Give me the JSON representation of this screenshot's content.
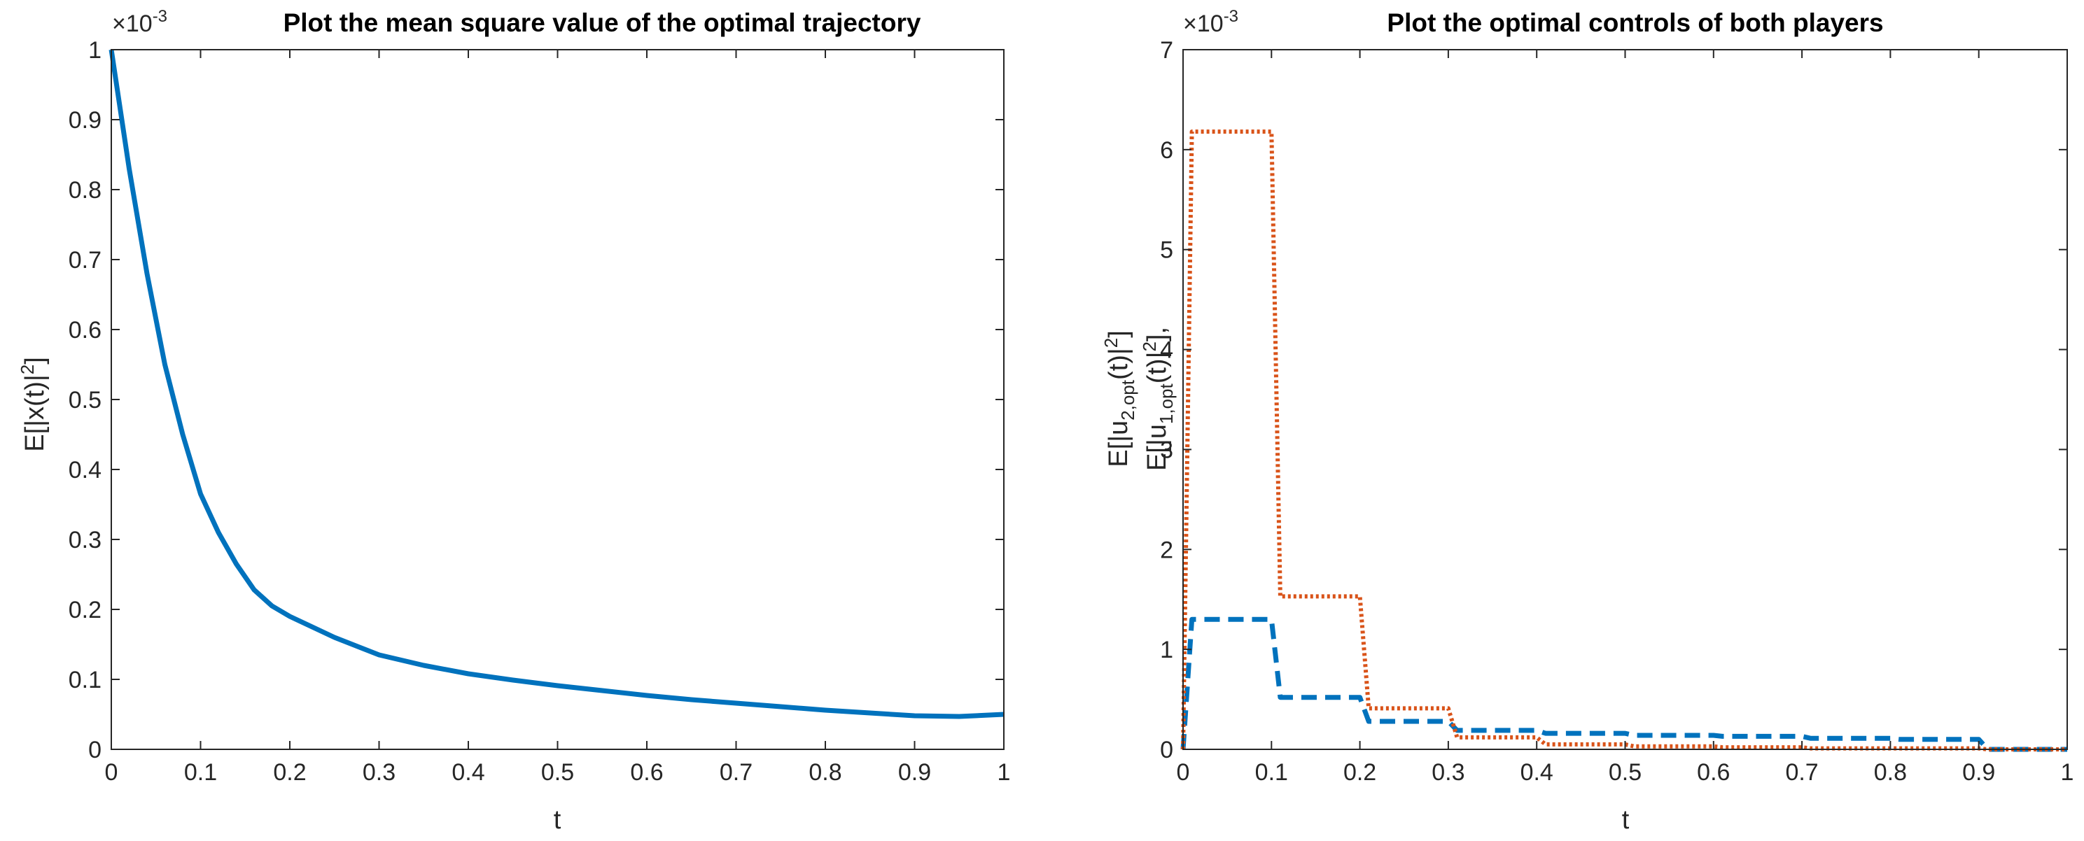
{
  "chart_data": [
    {
      "type": "line",
      "title": "Plot the mean square value of the optimal trajectory",
      "xlabel": "t",
      "ylabel": "E[|x(t)|",
      "ylabel_sup": "2",
      "ylabel_end": "]",
      "exponent_prefix": "×10",
      "exponent_sup": "-3",
      "xlim": [
        0,
        1
      ],
      "ylim": [
        0,
        1
      ],
      "xticks": [
        "0",
        "0.1",
        "0.2",
        "0.3",
        "0.4",
        "0.5",
        "0.6",
        "0.7",
        "0.8",
        "0.9",
        "1"
      ],
      "yticks": [
        "0",
        "0.1",
        "0.2",
        "0.3",
        "0.4",
        "0.5",
        "0.6",
        "0.7",
        "0.8",
        "0.9",
        "1"
      ],
      "grid": false,
      "series": [
        {
          "name": "E[|x(t)|^2]",
          "color": "#0072BD",
          "style": "solid",
          "x": [
            0,
            0.02,
            0.04,
            0.06,
            0.08,
            0.1,
            0.12,
            0.14,
            0.16,
            0.18,
            0.2,
            0.25,
            0.3,
            0.35,
            0.4,
            0.45,
            0.5,
            0.55,
            0.6,
            0.65,
            0.7,
            0.75,
            0.8,
            0.85,
            0.9,
            0.95,
            1
          ],
          "values": [
            1.0,
            0.83,
            0.68,
            0.55,
            0.45,
            0.365,
            0.31,
            0.265,
            0.228,
            0.205,
            0.19,
            0.16,
            0.135,
            0.12,
            0.108,
            0.099,
            0.091,
            0.084,
            0.077,
            0.071,
            0.066,
            0.061,
            0.056,
            0.052,
            0.048,
            0.047,
            0.05
          ]
        }
      ]
    },
    {
      "type": "line",
      "title": "Plot the optimal controls of both players",
      "xlabel": "t",
      "ylabel_line1": {
        "a": "E[|u",
        "b": "1,opt",
        "c": "(t)|",
        "d": "2",
        "e": "],"
      },
      "ylabel_line2": {
        "a": "E[|u",
        "b": "2,opt",
        "c": "(t)|",
        "d": "2",
        "e": "]"
      },
      "exponent_prefix": "×10",
      "exponent_sup": "-3",
      "xlim": [
        0,
        1
      ],
      "ylim": [
        0,
        7
      ],
      "xticks": [
        "0",
        "0.1",
        "0.2",
        "0.3",
        "0.4",
        "0.5",
        "0.6",
        "0.7",
        "0.8",
        "0.9",
        "1"
      ],
      "yticks": [
        "0",
        "1",
        "2",
        "3",
        "4",
        "5",
        "6",
        "7"
      ],
      "grid": false,
      "series": [
        {
          "name": "E[|u_1,opt(t)|^2]",
          "color": "#0072BD",
          "style": "dashed",
          "x": [
            0,
            0.01,
            0.1,
            0.11,
            0.2,
            0.21,
            0.3,
            0.31,
            0.4,
            0.41,
            0.5,
            0.51,
            0.6,
            0.61,
            0.7,
            0.71,
            0.8,
            0.81,
            0.9,
            0.91,
            1
          ],
          "values": [
            0,
            1.3,
            1.3,
            0.52,
            0.52,
            0.28,
            0.28,
            0.19,
            0.19,
            0.16,
            0.16,
            0.14,
            0.14,
            0.13,
            0.13,
            0.11,
            0.11,
            0.1,
            0.1,
            0.0,
            0.0
          ]
        },
        {
          "name": "E[|u_2,opt(t)|^2]",
          "color": "#D95319",
          "style": "dotted",
          "x": [
            0,
            0.01,
            0.1,
            0.11,
            0.2,
            0.21,
            0.3,
            0.31,
            0.4,
            0.41,
            0.5,
            0.51,
            0.6,
            0.61,
            0.7,
            0.71,
            0.8,
            0.81,
            0.9,
            0.91,
            1
          ],
          "values": [
            0,
            6.18,
            6.18,
            1.53,
            1.53,
            0.41,
            0.41,
            0.12,
            0.12,
            0.05,
            0.05,
            0.03,
            0.03,
            0.02,
            0.02,
            0.01,
            0.01,
            0.01,
            0.01,
            0.0,
            0.0
          ]
        }
      ]
    }
  ]
}
